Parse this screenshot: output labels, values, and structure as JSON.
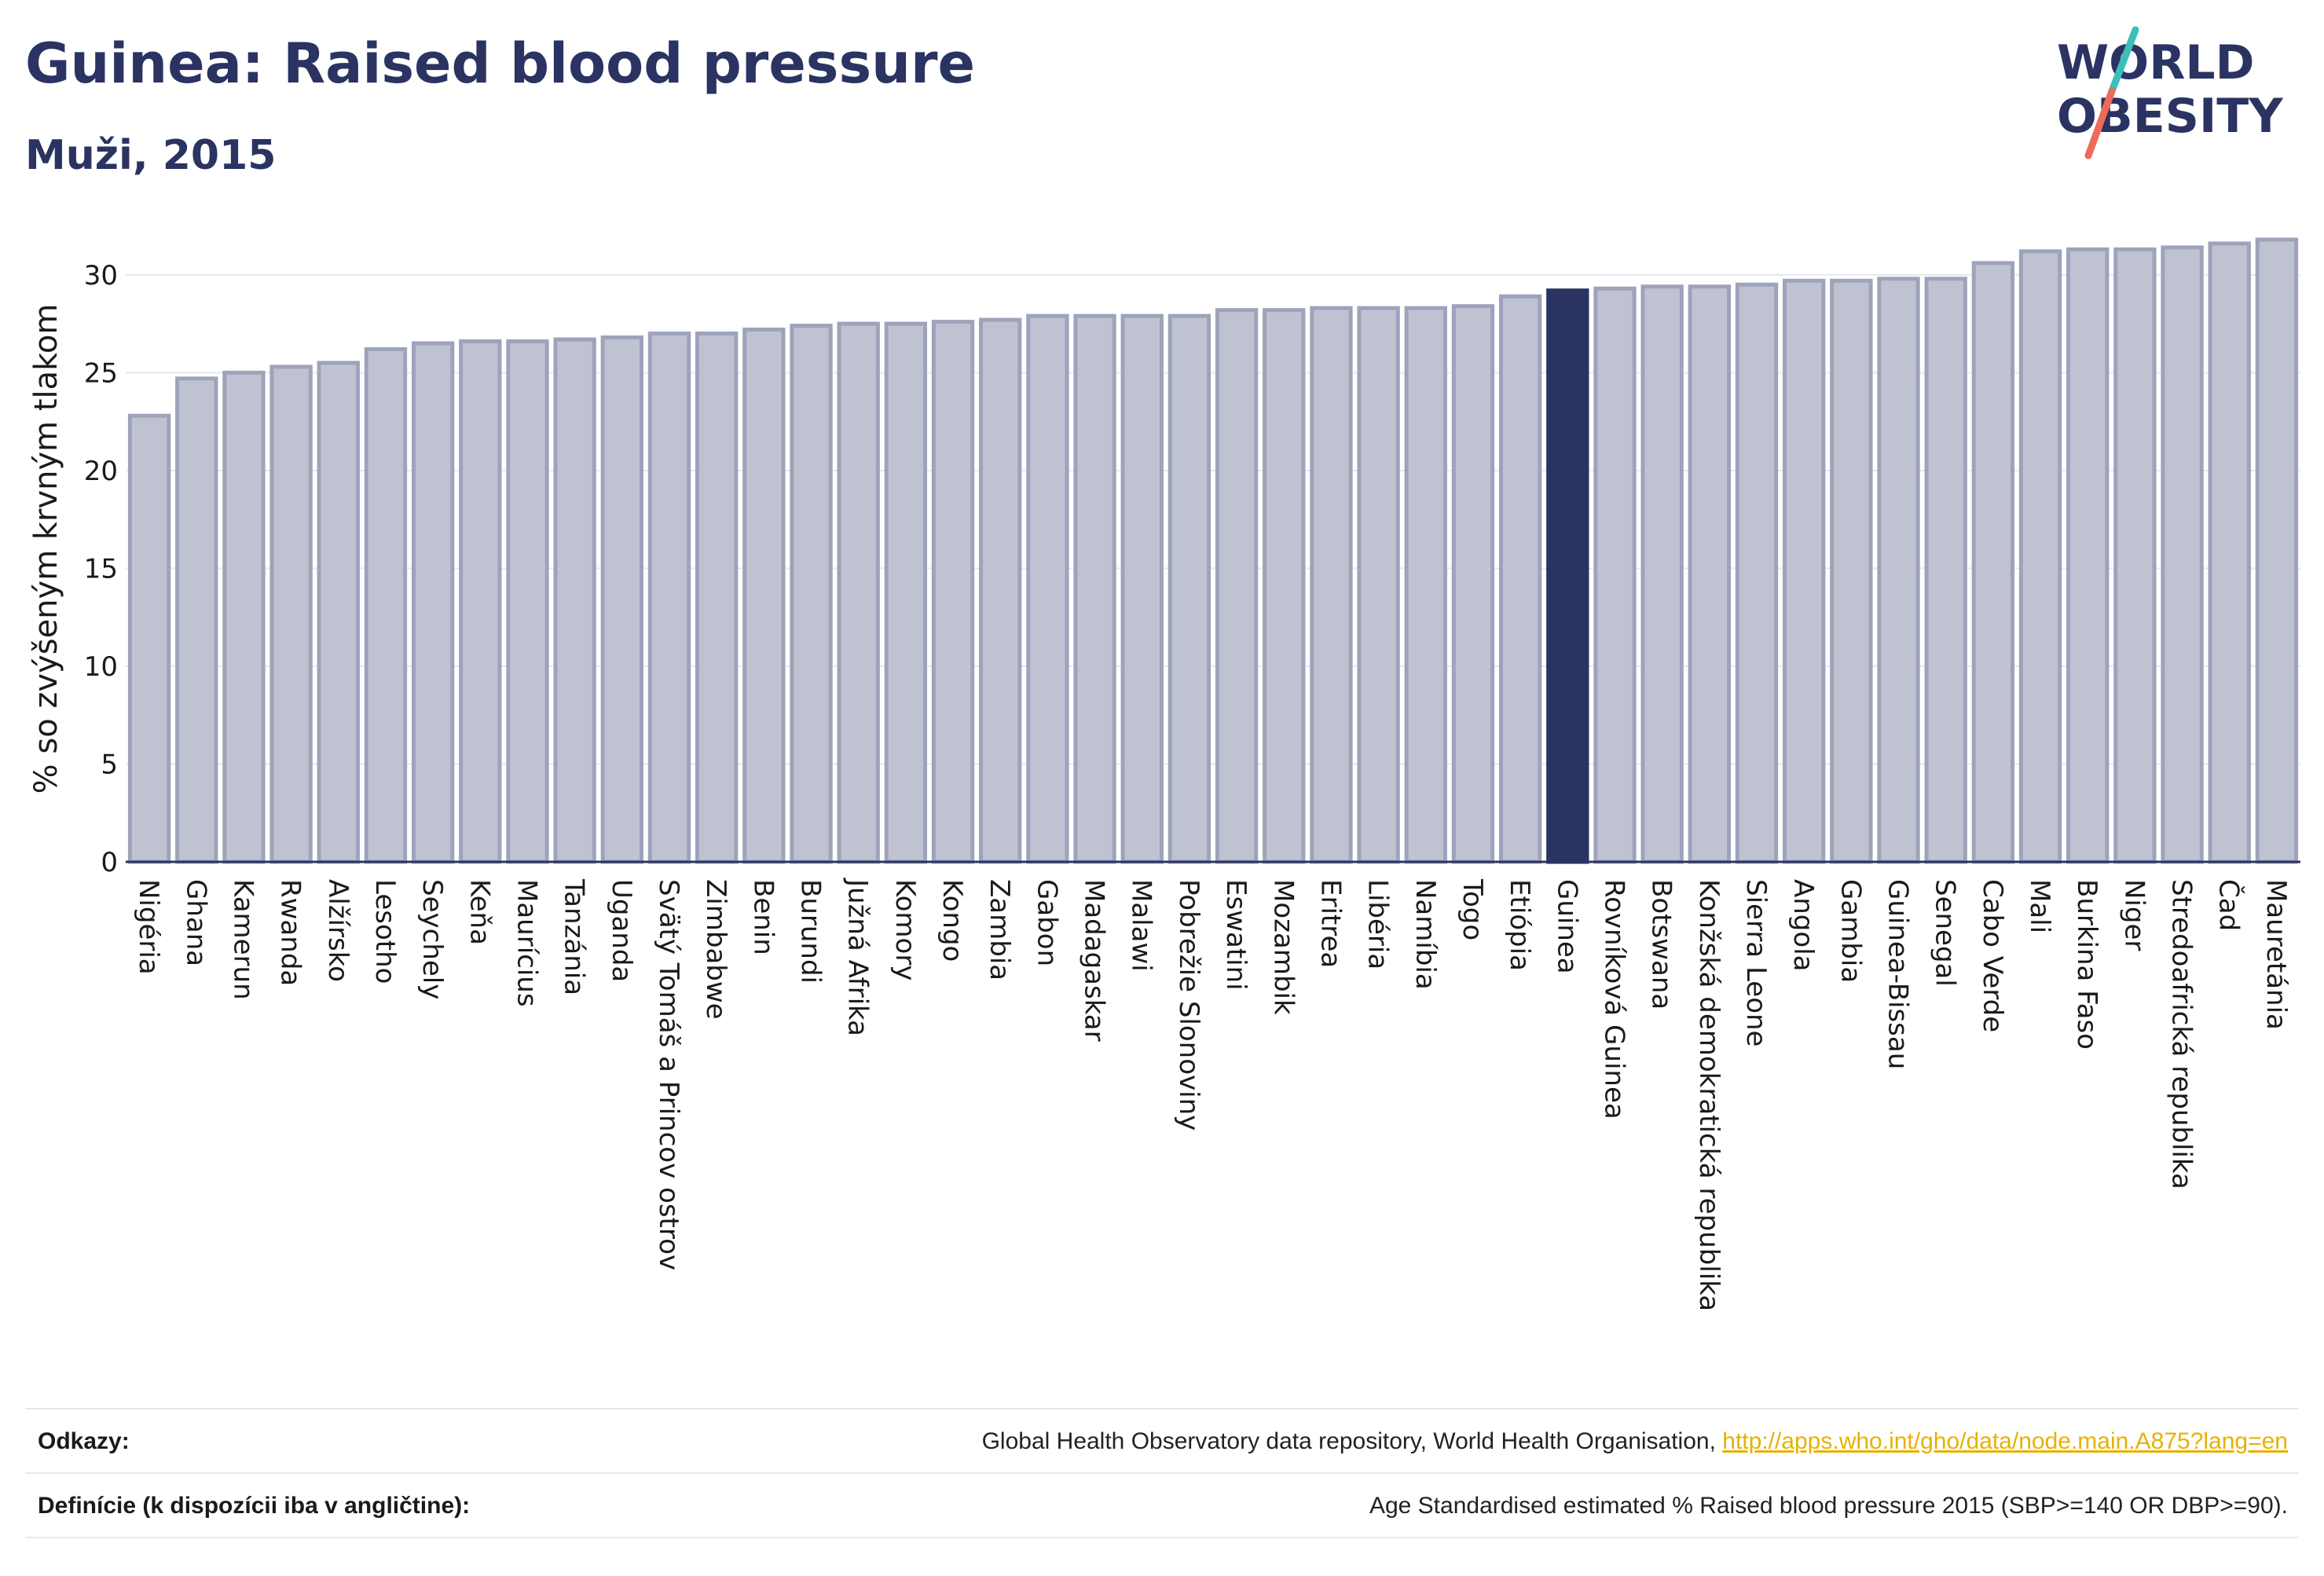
{
  "header": {
    "title": "Guinea: Raised blood pressure",
    "subtitle": "Muži, 2015"
  },
  "logo": {
    "line1": "WORLD",
    "line2": "OBESITY",
    "colors": {
      "text": "#2a3361",
      "slash_top": "#3bbfb8",
      "slash_bottom": "#ee6a5a"
    }
  },
  "colors": {
    "bar_fill": "#bfc3d1",
    "bar_stroke": "#9ea3bb",
    "highlight": "#2a3361",
    "grid": "#e6e8ef",
    "axis": "#2a3361",
    "text": "#1a1a1a"
  },
  "chart_data": {
    "type": "bar",
    "title": "Guinea: Raised blood pressure",
    "subtitle": "Muži, 2015",
    "xlabel": "",
    "ylabel": "% so zvýšeným krvným tlakom",
    "ylim": [
      0,
      32
    ],
    "yticks": [
      0,
      5,
      10,
      15,
      20,
      25,
      30
    ],
    "grid": true,
    "highlight": "Guinea",
    "categories": [
      "Nigéria",
      "Ghana",
      "Kamerun",
      "Rwanda",
      "Alžírsko",
      "Lesotho",
      "Seychely",
      "Keňa",
      "Maurícius",
      "Tanzánia",
      "Uganda",
      "Svätý Tomáš a Princov ostrov",
      "Zimbabwe",
      "Benin",
      "Burundi",
      "Južná Afrika",
      "Komory",
      "Kongo",
      "Zambia",
      "Gabon",
      "Madagaskar",
      "Malawi",
      "Pobrežie Slonoviny",
      "Eswatini",
      "Mozambik",
      "Eritrea",
      "Libéria",
      "Namíbia",
      "Togo",
      "Etiópia",
      "Guinea",
      "Rovníková Guinea",
      "Botswana",
      "Konžská demokratická republika",
      "Sierra Leone",
      "Angola",
      "Gambia",
      "Guinea-Bissau",
      "Senegal",
      "Cabo Verde",
      "Mali",
      "Burkina Faso",
      "Niger",
      "Stredoafrická republika",
      "Čad",
      "Mauretánia"
    ],
    "values": [
      22.8,
      24.7,
      25.0,
      25.3,
      25.5,
      26.2,
      26.5,
      26.6,
      26.6,
      26.7,
      26.8,
      27.0,
      27.0,
      27.2,
      27.4,
      27.5,
      27.5,
      27.6,
      27.7,
      27.9,
      27.9,
      27.9,
      27.9,
      28.2,
      28.2,
      28.3,
      28.3,
      28.3,
      28.4,
      28.9,
      29.2,
      29.3,
      29.4,
      29.4,
      29.5,
      29.7,
      29.7,
      29.8,
      29.8,
      30.6,
      31.2,
      31.3,
      31.3,
      31.4,
      31.6,
      31.8
    ]
  },
  "footer": {
    "references_label": "Odkazy:",
    "references_text": "Global Health Observatory data repository, World Health Organisation, ",
    "references_link": "http://apps.who.int/gho/data/node.main.A875?lang=en",
    "definitions_label": "Definície (k dispozícii iba v angličtine):",
    "definitions_text": "Age Standardised estimated % Raised blood pressure 2015 (SBP>=140 OR DBP>=90)."
  }
}
